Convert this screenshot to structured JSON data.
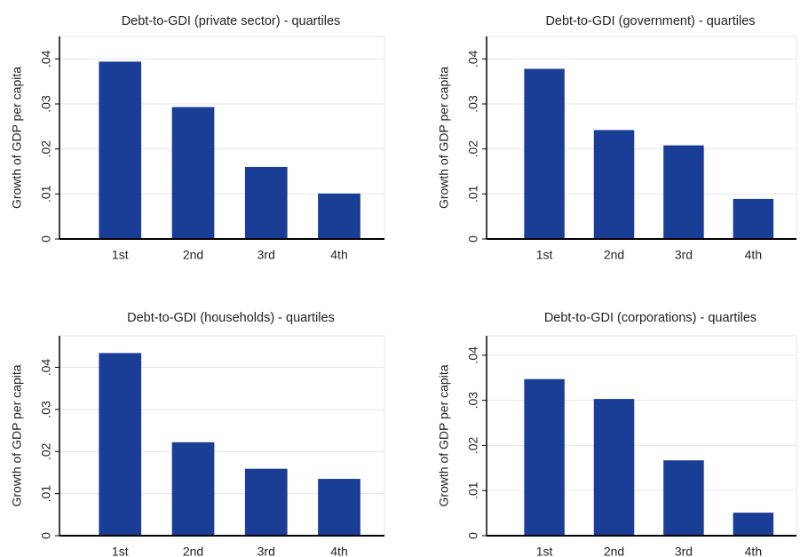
{
  "chart_data": [
    {
      "type": "bar",
      "title": "Debt-to-GDI (private sector) - quartiles",
      "y_label": "Growth of GDP per capita",
      "categories": [
        "1st",
        "2nd",
        "3rd",
        "4th"
      ],
      "values": [
        0.0394,
        0.0293,
        0.016,
        0.0101
      ],
      "color": "#1a3d96",
      "ylim": [
        0,
        0.045
      ],
      "yticks": [
        0,
        {
          "value": 0.01,
          "label": ".01"
        },
        {
          "value": 0.02,
          "label": ".02"
        },
        {
          "value": 0.03,
          "label": ".03"
        },
        {
          "value": 0.04,
          "label": ".04"
        }
      ],
      "grid": true
    },
    {
      "type": "bar",
      "title": "Debt-to-GDI (government) - quartiles",
      "y_label": "Growth of GDP per capita",
      "categories": [
        "1st",
        "2nd",
        "3rd",
        "4th"
      ],
      "values": [
        0.0378,
        0.0242,
        0.0208,
        0.0089
      ],
      "color": "#1a3d96",
      "ylim": [
        0,
        0.045
      ],
      "yticks": [
        0,
        {
          "value": 0.01,
          "label": ".01"
        },
        {
          "value": 0.02,
          "label": ".02"
        },
        {
          "value": 0.03,
          "label": ".03"
        },
        {
          "value": 0.04,
          "label": ".04"
        }
      ],
      "grid": true
    },
    {
      "type": "bar",
      "title": "Debt-to-GDI (households) - quartiles",
      "y_label": "Growth of GDP per capita",
      "categories": [
        "1st",
        "2nd",
        "3rd",
        "4th"
      ],
      "values": [
        0.0434,
        0.0222,
        0.0159,
        0.0135
      ],
      "color": "#1a3d96",
      "ylim": [
        0,
        0.0475
      ],
      "yticks": [
        0,
        {
          "value": 0.01,
          "label": ".01"
        },
        {
          "value": 0.02,
          "label": ".02"
        },
        {
          "value": 0.03,
          "label": ".03"
        },
        {
          "value": 0.04,
          "label": ".04"
        }
      ],
      "grid": true
    },
    {
      "type": "bar",
      "title": "Debt-to-GDI (corporations) - quartiles",
      "y_label": "Growth of GDP per capita",
      "categories": [
        "1st",
        "2nd",
        "3rd",
        "4th"
      ],
      "values": [
        0.0347,
        0.0303,
        0.0167,
        0.0051
      ],
      "color": "#1a3d96",
      "ylim": [
        0,
        0.0443
      ],
      "yticks": [
        0,
        {
          "value": 0.01,
          "label": ".01"
        },
        {
          "value": 0.02,
          "label": ".02"
        },
        {
          "value": 0.03,
          "label": ".03"
        },
        {
          "value": 0.04,
          "label": ".04"
        }
      ],
      "grid": true
    }
  ]
}
